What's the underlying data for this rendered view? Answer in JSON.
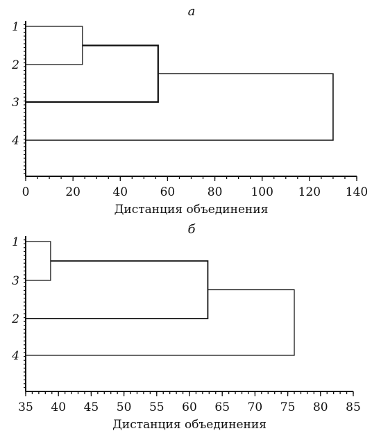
{
  "chart_data": [
    {
      "type": "dendrogram",
      "title": "а",
      "xlabel": "Дистанция объединения",
      "xlim": [
        0,
        140
      ],
      "xticks": [
        0,
        20,
        40,
        60,
        80,
        100,
        120,
        140
      ],
      "leaf_order": [
        "1",
        "2",
        "3",
        "4"
      ],
      "merges": [
        {
          "left": "1",
          "right": "2",
          "distance": 24
        },
        {
          "left": "(1,2)",
          "right": "3",
          "distance": 56
        },
        {
          "left": "(1,2,3)",
          "right": "4",
          "distance": 130
        }
      ],
      "grid": false
    },
    {
      "type": "dendrogram",
      "title": "б",
      "xlabel": "Дистанция объединения",
      "xlim": [
        35,
        85
      ],
      "xticks": [
        35,
        40,
        45,
        50,
        55,
        60,
        65,
        70,
        75,
        80,
        85
      ],
      "leaf_order": [
        "1",
        "3",
        "2",
        "4"
      ],
      "merges": [
        {
          "left": "1",
          "right": "3",
          "distance": 38.8
        },
        {
          "left": "(1,3)",
          "right": "2",
          "distance": 62.8
        },
        {
          "left": "(1,3,2)",
          "right": "4",
          "distance": 76
        }
      ],
      "grid": false
    }
  ]
}
